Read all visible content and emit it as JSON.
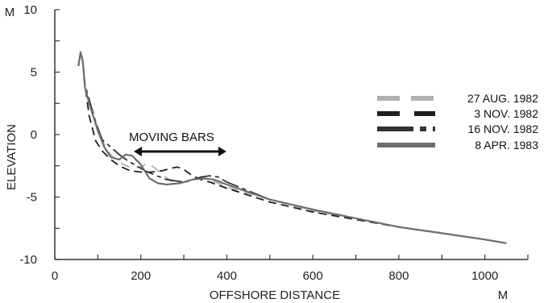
{
  "chart_data": {
    "type": "line",
    "title": "",
    "xlabel": "OFFSHORE DISTANCE",
    "xunit": "M",
    "ylabel": "ELEVATION",
    "yunit": "M",
    "xlim": [
      0,
      1100
    ],
    "ylim": [
      -10,
      10
    ],
    "xticks": [
      0,
      200,
      400,
      600,
      800,
      1000
    ],
    "yticks": [
      -10,
      -5,
      0,
      5,
      10
    ],
    "grid": false,
    "legend_position": "right",
    "annotation": "MOVING BARS",
    "series": [
      {
        "name": "27 AUG. 1982",
        "color": "#b0b0b0",
        "dash": "long-gap",
        "points": [
          [
            55,
            5.5
          ],
          [
            60,
            6.6
          ],
          [
            65,
            5.8
          ],
          [
            70,
            3.8
          ],
          [
            80,
            2.5
          ],
          [
            100,
            0.5
          ],
          [
            120,
            -1.2
          ],
          [
            140,
            -2.0
          ],
          [
            160,
            -2.4
          ],
          [
            180,
            -2.7
          ],
          [
            200,
            -2.6
          ],
          [
            215,
            -2.3
          ],
          [
            230,
            -2.6
          ],
          [
            250,
            -3.2
          ],
          [
            270,
            -3.7
          ],
          [
            290,
            -3.9
          ],
          [
            320,
            -3.7
          ],
          [
            340,
            -3.5
          ],
          [
            360,
            -3.6
          ],
          [
            400,
            -4.2
          ],
          [
            500,
            -5.2
          ],
          [
            600,
            -6.1
          ],
          [
            700,
            -6.7
          ],
          [
            800,
            -7.4
          ],
          [
            900,
            -7.9
          ],
          [
            1000,
            -8.4
          ],
          [
            1050,
            -8.7
          ]
        ]
      },
      {
        "name": "3 NOV. 1982",
        "color": "#1e1e1e",
        "dash": "medium",
        "points": [
          [
            55,
            5.5
          ],
          [
            60,
            6.6
          ],
          [
            65,
            6.0
          ],
          [
            70,
            4.0
          ],
          [
            80,
            1.5
          ],
          [
            95,
            -0.5
          ],
          [
            110,
            -1.3
          ],
          [
            130,
            -2.0
          ],
          [
            150,
            -2.5
          ],
          [
            175,
            -2.9
          ],
          [
            200,
            -3.0
          ],
          [
            225,
            -3.0
          ],
          [
            250,
            -2.9
          ],
          [
            270,
            -2.7
          ],
          [
            285,
            -2.6
          ],
          [
            300,
            -2.8
          ],
          [
            320,
            -3.3
          ],
          [
            340,
            -3.6
          ],
          [
            360,
            -3.8
          ],
          [
            400,
            -4.3
          ],
          [
            500,
            -5.4
          ],
          [
            600,
            -6.2
          ],
          [
            700,
            -6.8
          ],
          [
            800,
            -7.4
          ],
          [
            900,
            -7.9
          ],
          [
            1000,
            -8.4
          ],
          [
            1050,
            -8.7
          ]
        ]
      },
      {
        "name": "16 NOV. 1982",
        "color": "#333333",
        "dash": "long-short",
        "points": [
          [
            55,
            5.5
          ],
          [
            60,
            6.6
          ],
          [
            65,
            5.9
          ],
          [
            70,
            4.0
          ],
          [
            80,
            2.8
          ],
          [
            95,
            1.0
          ],
          [
            110,
            -0.4
          ],
          [
            130,
            -1.0
          ],
          [
            150,
            -1.6
          ],
          [
            170,
            -2.1
          ],
          [
            190,
            -2.5
          ],
          [
            210,
            -2.9
          ],
          [
            230,
            -3.2
          ],
          [
            260,
            -3.6
          ],
          [
            300,
            -3.8
          ],
          [
            340,
            -3.4
          ],
          [
            360,
            -3.3
          ],
          [
            380,
            -3.4
          ],
          [
            400,
            -3.8
          ],
          [
            500,
            -5.2
          ],
          [
            600,
            -6.0
          ],
          [
            700,
            -6.7
          ],
          [
            800,
            -7.4
          ],
          [
            900,
            -7.9
          ],
          [
            1000,
            -8.4
          ],
          [
            1050,
            -8.7
          ]
        ]
      },
      {
        "name": "8 APR. 1983",
        "color": "#6e6e6e",
        "dash": "solid",
        "points": [
          [
            55,
            5.5
          ],
          [
            60,
            6.6
          ],
          [
            65,
            5.9
          ],
          [
            70,
            3.8
          ],
          [
            80,
            2.5
          ],
          [
            100,
            0.3
          ],
          [
            115,
            -1.0
          ],
          [
            130,
            -1.8
          ],
          [
            150,
            -2.0
          ],
          [
            165,
            -1.6
          ],
          [
            180,
            -1.7
          ],
          [
            200,
            -2.4
          ],
          [
            220,
            -3.5
          ],
          [
            240,
            -3.9
          ],
          [
            260,
            -4.0
          ],
          [
            290,
            -3.9
          ],
          [
            320,
            -3.6
          ],
          [
            345,
            -3.5
          ],
          [
            370,
            -3.6
          ],
          [
            400,
            -4.0
          ],
          [
            500,
            -5.2
          ],
          [
            600,
            -6.0
          ],
          [
            700,
            -6.7
          ],
          [
            800,
            -7.4
          ],
          [
            900,
            -7.9
          ],
          [
            1000,
            -8.4
          ],
          [
            1050,
            -8.7
          ]
        ]
      }
    ]
  }
}
